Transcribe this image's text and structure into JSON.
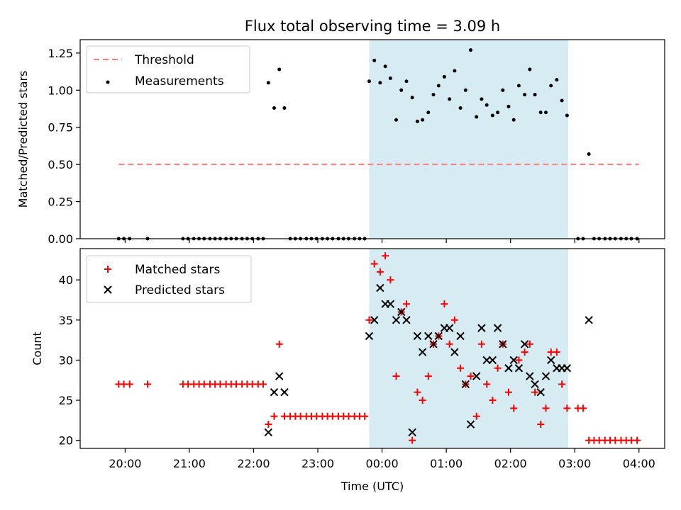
{
  "title": "Flux total observing time = 3.09 h",
  "colors": {
    "threshold": "#ff7f7f",
    "measurement": "#000000",
    "matched": "#ff0000",
    "predicted": "#000000",
    "span_fill": "#add8e6"
  },
  "chart_data": [
    {
      "type": "scatter",
      "panel": "top",
      "title": "Flux total observing time = 3.09 h",
      "xlabel": "",
      "ylabel": "Matched/Predicted stars",
      "x_unit": "hours since 00:00 UTC",
      "xlim": [
        -4.7,
        4.4
      ],
      "ylim": [
        0.0,
        1.34
      ],
      "y_ticks": [
        "0.00",
        "0.25",
        "0.50",
        "0.75",
        "1.00",
        "1.25"
      ],
      "shaded_span": [
        -0.2,
        2.9
      ],
      "legend": [
        "Threshold",
        "Measurements"
      ],
      "legend_position": "upper-left",
      "threshold": {
        "name": "Threshold",
        "value": 0.5,
        "x": [
          -4.1,
          4.0
        ]
      },
      "measurements": {
        "name": "Measurements",
        "x": [
          -4.1,
          -4.02,
          -3.93,
          -3.65,
          -3.1,
          -3.02,
          -2.93,
          -2.85,
          -2.77,
          -2.68,
          -2.6,
          -2.52,
          -2.43,
          -2.35,
          -2.27,
          -2.18,
          -2.1,
          -2.02,
          -1.93,
          -1.85,
          -1.77,
          -1.68,
          -1.6,
          -1.52,
          -1.43,
          -1.35,
          -1.27,
          -1.18,
          -1.1,
          -1.02,
          -0.93,
          -0.85,
          -0.77,
          -0.68,
          -0.6,
          -0.52,
          -0.43,
          -0.35,
          -0.27,
          -0.2,
          -0.12,
          -0.03,
          0.05,
          0.13,
          0.22,
          0.3,
          0.38,
          0.47,
          0.55,
          0.63,
          0.72,
          0.8,
          0.88,
          0.97,
          1.05,
          1.13,
          1.22,
          1.3,
          1.38,
          1.47,
          1.55,
          1.63,
          1.72,
          1.8,
          1.88,
          1.97,
          2.05,
          2.13,
          2.22,
          2.3,
          2.38,
          2.47,
          2.55,
          2.63,
          2.72,
          2.8,
          2.88,
          3.05,
          3.13,
          3.22,
          3.3,
          3.38,
          3.47,
          3.55,
          3.63,
          3.72,
          3.8,
          3.88,
          3.97
        ],
        "y": [
          0,
          0,
          0,
          0,
          0,
          0,
          0,
          0,
          0,
          0,
          0,
          0,
          0,
          0,
          0,
          0,
          0,
          0,
          0,
          0,
          1.05,
          0.88,
          1.14,
          0.88,
          0,
          0,
          0,
          0,
          0,
          0,
          0,
          0,
          0,
          0,
          0,
          0,
          0,
          0,
          0,
          1.06,
          1.2,
          1.05,
          1.16,
          1.08,
          0.8,
          1.0,
          1.06,
          0.95,
          0.79,
          0.8,
          0.85,
          0.97,
          1.03,
          1.09,
          0.94,
          1.13,
          0.88,
          1.0,
          1.27,
          0.82,
          0.94,
          0.9,
          0.83,
          0.85,
          1.0,
          0.89,
          0.8,
          1.03,
          0.97,
          1.14,
          0.97,
          0.85,
          0.85,
          1.03,
          1.07,
          0.93,
          0.83,
          0,
          0,
          0.57,
          0,
          0,
          0,
          0,
          0,
          0,
          0,
          0,
          0
        ]
      }
    },
    {
      "type": "scatter",
      "panel": "bottom",
      "xlabel": "Time (UTC)",
      "ylabel": "Count",
      "x_unit": "hours since 00:00 UTC",
      "xlim": [
        -4.7,
        4.4
      ],
      "ylim": [
        19.0,
        43.9
      ],
      "y_ticks": [
        "20",
        "25",
        "30",
        "35",
        "40"
      ],
      "x_ticks": [
        {
          "value": -4.0,
          "label": "20:00"
        },
        {
          "value": -3.0,
          "label": "21:00"
        },
        {
          "value": -2.0,
          "label": "22:00"
        },
        {
          "value": -1.0,
          "label": "23:00"
        },
        {
          "value": 0.0,
          "label": "00:00"
        },
        {
          "value": 1.0,
          "label": "01:00"
        },
        {
          "value": 2.0,
          "label": "02:00"
        },
        {
          "value": 3.0,
          "label": "03:00"
        },
        {
          "value": 4.0,
          "label": "04:00"
        }
      ],
      "shaded_span": [
        -0.2,
        2.9
      ],
      "legend": [
        "Matched stars",
        "Predicted stars"
      ],
      "legend_position": "upper-left",
      "series": [
        {
          "name": "Matched stars",
          "marker": "plus",
          "x": [
            -4.1,
            -4.02,
            -3.93,
            -3.65,
            -3.1,
            -3.02,
            -2.93,
            -2.85,
            -2.77,
            -2.68,
            -2.6,
            -2.52,
            -2.43,
            -2.35,
            -2.27,
            -2.18,
            -2.1,
            -2.02,
            -1.93,
            -1.85,
            -1.77,
            -1.68,
            -1.6,
            -1.52,
            -1.43,
            -1.35,
            -1.27,
            -1.18,
            -1.1,
            -1.02,
            -0.93,
            -0.85,
            -0.77,
            -0.68,
            -0.6,
            -0.52,
            -0.43,
            -0.35,
            -0.27,
            -0.2,
            -0.12,
            -0.03,
            0.05,
            0.13,
            0.22,
            0.3,
            0.38,
            0.47,
            0.55,
            0.63,
            0.72,
            0.8,
            0.88,
            0.97,
            1.05,
            1.13,
            1.22,
            1.3,
            1.38,
            1.47,
            1.55,
            1.63,
            1.72,
            1.8,
            1.88,
            1.97,
            2.05,
            2.13,
            2.22,
            2.3,
            2.38,
            2.47,
            2.55,
            2.63,
            2.72,
            2.8,
            2.88,
            3.05,
            3.13,
            3.22,
            3.3,
            3.38,
            3.47,
            3.55,
            3.63,
            3.72,
            3.8,
            3.88,
            3.97
          ],
          "y": [
            27,
            27,
            27,
            27,
            27,
            27,
            27,
            27,
            27,
            27,
            27,
            27,
            27,
            27,
            27,
            27,
            27,
            27,
            27,
            27,
            22,
            23,
            32,
            23,
            23,
            23,
            23,
            23,
            23,
            23,
            23,
            23,
            23,
            23,
            23,
            23,
            23,
            23,
            23,
            35,
            42,
            41,
            43,
            40,
            28,
            36,
            37,
            20,
            26,
            25,
            28,
            32,
            33,
            37,
            32,
            35,
            29,
            27,
            28,
            23,
            32,
            27,
            25,
            29,
            32,
            26,
            24,
            30,
            31,
            32,
            26,
            22,
            24,
            31,
            31,
            27,
            24,
            24,
            24,
            20,
            20,
            20,
            20,
            20,
            20,
            20,
            20,
            20,
            20
          ]
        },
        {
          "name": "Predicted stars",
          "marker": "x",
          "x": [
            -1.77,
            -1.68,
            -1.6,
            -1.52,
            -0.2,
            -0.12,
            -0.03,
            0.05,
            0.13,
            0.22,
            0.3,
            0.38,
            0.47,
            0.55,
            0.63,
            0.72,
            0.8,
            0.88,
            0.97,
            1.05,
            1.13,
            1.22,
            1.3,
            1.38,
            1.47,
            1.55,
            1.63,
            1.72,
            1.8,
            1.88,
            1.97,
            2.05,
            2.13,
            2.22,
            2.3,
            2.38,
            2.47,
            2.55,
            2.63,
            2.72,
            2.8,
            2.88,
            3.22
          ],
          "y": [
            21,
            26,
            28,
            26,
            33,
            35,
            39,
            37,
            37,
            35,
            36,
            35,
            21,
            33,
            31,
            33,
            32,
            33,
            34,
            34,
            31,
            33,
            27,
            22,
            28,
            34,
            30,
            30,
            34,
            32,
            29,
            30,
            29,
            32,
            28,
            27,
            26,
            28,
            30,
            29,
            29,
            29,
            35
          ]
        }
      ]
    }
  ]
}
